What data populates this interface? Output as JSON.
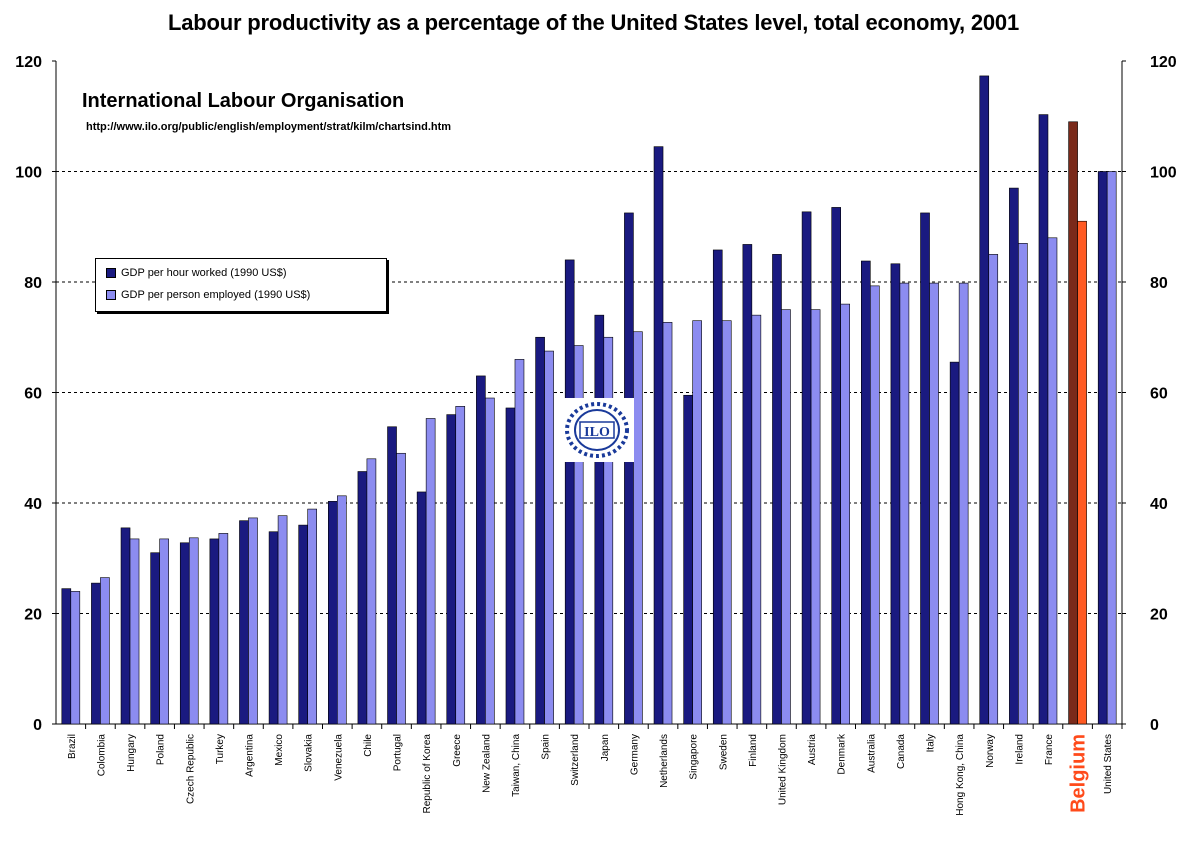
{
  "title": "Labour productivity as a percentage of the United States level, total economy, 2001",
  "organization": {
    "name": "International Labour Organisation",
    "url": "http://www.ilo.org/public/english/employment/strat/kilm/chartsind.htm",
    "logo_text": "ILO"
  },
  "colors": {
    "series1": "#1a1a80",
    "series2": "#8c8cf0",
    "highlight": "#ff4a1a",
    "highlight_series2": "#ff5a22",
    "highlight_series1": "#7a2a1a",
    "grid": "#000000"
  },
  "chart_data": {
    "type": "bar",
    "title": "Labour productivity as a percentage of the United States level, total economy, 2001",
    "xlabel": "",
    "ylabel": "",
    "ylim": [
      0,
      120
    ],
    "yticks": [
      0,
      20,
      40,
      60,
      80,
      100,
      120
    ],
    "grid": "horizontal dashed at 20,40,60,80,100",
    "legend_placement": "left",
    "categories": [
      "Brazil",
      "Colombia",
      "Hungary",
      "Poland",
      "Czech Republic",
      "Turkey",
      "Argentina",
      "Mexico",
      "Slovakia",
      "Venezuela",
      "Chile",
      "Portugal",
      "Republic of Korea",
      "Greece",
      "New Zealand",
      "Taiwan, China",
      "Spain",
      "Switzerland",
      "Japan",
      "Germany",
      "Netherlands",
      "Singapore",
      "Sweden",
      "Finland",
      "United Kingdom",
      "Austria",
      "Denmark",
      "Australia",
      "Canada",
      "Italy",
      "Hong Kong, China",
      "Norway",
      "Ireland",
      "France",
      "Belgium",
      "United States"
    ],
    "highlight_category": "Belgium",
    "series": [
      {
        "name": "GDP per hour worked (1990 US$)",
        "values": [
          24.5,
          25.5,
          35.5,
          31,
          32.8,
          33.5,
          36.8,
          34.8,
          36,
          40.3,
          45.7,
          53.8,
          42,
          56,
          63,
          57.2,
          70,
          84,
          74,
          92.5,
          104.5,
          59.5,
          85.8,
          86.8,
          85,
          92.7,
          93.5,
          83.8,
          83.3,
          92.5,
          65.5,
          117.3,
          97,
          110.3,
          109,
          100
        ]
      },
      {
        "name": "GDP per person employed (1990 US$)",
        "values": [
          24,
          26.5,
          33.5,
          33.5,
          33.7,
          34.5,
          37.3,
          37.7,
          38.9,
          41.3,
          48,
          49,
          55.3,
          57.5,
          59,
          66,
          67.5,
          68.5,
          70,
          71,
          72.7,
          73,
          73,
          74,
          75,
          75,
          76,
          79.3,
          79.8,
          79.8,
          79.8,
          85,
          87,
          88,
          91,
          100
        ]
      }
    ]
  }
}
